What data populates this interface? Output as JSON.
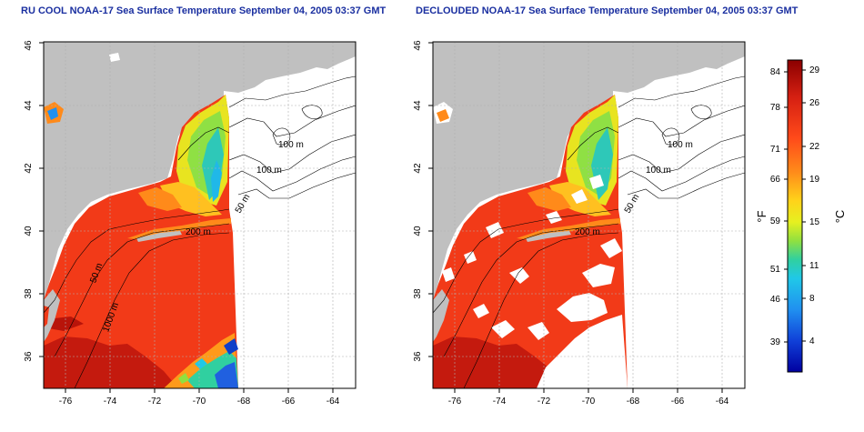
{
  "panels": [
    {
      "title": "RU COOL NOAA-17 Sea Surface Temperature September 04, 2005 03:37 GMT",
      "bathymetry_labels": [
        "100 m",
        "100 m",
        "50 m",
        "200 m",
        "50 m",
        "1000 m"
      ],
      "cloud_masked": false
    },
    {
      "title": "DECLOUDED NOAA-17 Sea Surface Temperature September 04, 2005 03:37 GMT",
      "bathymetry_labels": [
        "100 m",
        "100 m",
        "50 m",
        "200 m"
      ],
      "cloud_masked": true
    }
  ],
  "axes": {
    "lon_ticks": [
      "-76",
      "-74",
      "-72",
      "-70",
      "-68",
      "-66",
      "-64"
    ],
    "lat_ticks": [
      "36",
      "38",
      "40",
      "42",
      "44",
      "46"
    ],
    "lon_range": [
      -77,
      -63
    ],
    "lat_range": [
      35,
      46
    ]
  },
  "colorbar": {
    "f_label": "°F",
    "c_label": "°C",
    "f_ticks": [
      "84",
      "78",
      "71",
      "66",
      "59",
      "51",
      "46",
      "39"
    ],
    "c_ticks": [
      "29",
      "26",
      "22",
      "19",
      "15",
      "11",
      "8",
      "4"
    ],
    "colors": [
      "#8b0000",
      "#d62012",
      "#ff4a1a",
      "#ff8c1a",
      "#ffd21a",
      "#e6f020",
      "#90e040",
      "#30d0a0",
      "#20c8e8",
      "#2090f0",
      "#1040d8",
      "#0000a0"
    ]
  }
}
